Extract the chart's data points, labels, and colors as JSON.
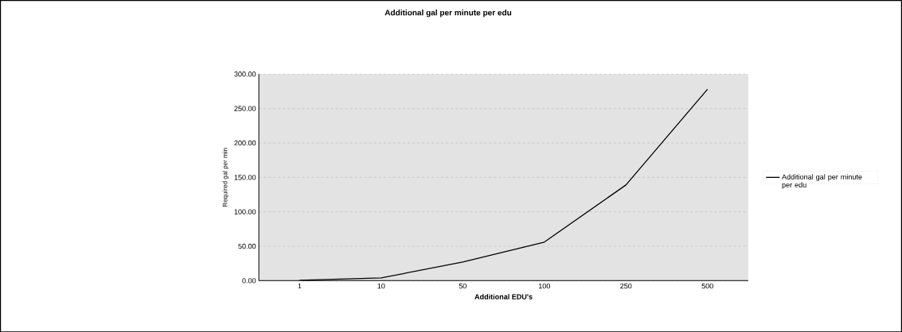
{
  "chart_data": {
    "type": "line",
    "title": "Additional gal per minute per edu",
    "xlabel": "Additional EDU's",
    "ylabel": "Required gal per min",
    "categories": [
      "1",
      "10",
      "50",
      "100",
      "250",
      "500"
    ],
    "series": [
      {
        "name": "Additional gal per minute per edu",
        "color": "#000000",
        "values": [
          0.5,
          4,
          27,
          56,
          139,
          278
        ]
      }
    ],
    "ylim": [
      0,
      300
    ],
    "yticks": [
      {
        "value": 0,
        "label": "0.00"
      },
      {
        "value": 50,
        "label": "50.00"
      },
      {
        "value": 100,
        "label": "100.00"
      },
      {
        "value": 150,
        "label": "150.00"
      },
      {
        "value": 200,
        "label": "200.00"
      },
      {
        "value": 250,
        "label": "250.00"
      },
      {
        "value": 300,
        "label": "300.00"
      }
    ],
    "grid": "y",
    "legend": "right",
    "marker": "none",
    "line_style": "solid"
  }
}
